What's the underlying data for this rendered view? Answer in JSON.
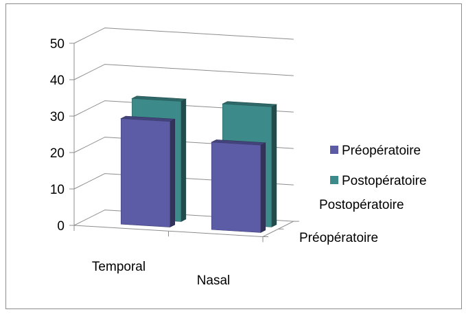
{
  "chart_data": {
    "type": "bar",
    "style": "3d-column",
    "categories": [
      "Temporal",
      "Nasal"
    ],
    "depth_categories": [
      "Préopératoire",
      "Postopératoire"
    ],
    "series": [
      {
        "name": "Préopératoire",
        "values": [
          29,
          24
        ],
        "color": "#5b5ba6"
      },
      {
        "name": "Postopératoire",
        "values": [
          33,
          33
        ],
        "color": "#3d8a8a"
      }
    ],
    "ylim": [
      0,
      50
    ],
    "yticks": [
      "0",
      "10",
      "20",
      "30",
      "40",
      "50"
    ],
    "grid": true,
    "legend": "right"
  }
}
